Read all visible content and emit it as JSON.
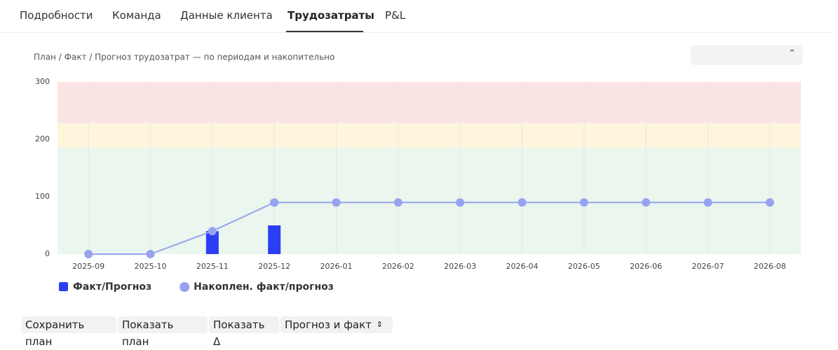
{
  "tabs": [
    "Подробности",
    "Команда",
    "Данные клиента",
    "Трудозатраты",
    "P&L"
  ],
  "active_tab": 3,
  "chart_data": {
    "type": "bar_line",
    "subtitle": "План / Факт / Прогноз трудозатрат — по периодам и накопительно",
    "categories": [
      "2025-09",
      "2025-10",
      "2025-11",
      "2025-12",
      "2026-01",
      "2026-02",
      "2026-03",
      "2026-04",
      "2026-05",
      "2026-06",
      "2026-07",
      "2026-08"
    ],
    "series": [
      {
        "name": "Факт/Прогноз",
        "type": "bar",
        "color": "#2a3ff5",
        "values": [
          null,
          null,
          40,
          50,
          null,
          null,
          null,
          null,
          null,
          null,
          null,
          null
        ]
      },
      {
        "name": "Накоплен. факт/прогноз",
        "type": "line",
        "color": "#97a3ef",
        "values": [
          0,
          0,
          40,
          90,
          90,
          90,
          90,
          90,
          90,
          90,
          90,
          90
        ]
      }
    ],
    "ylim": [
      0,
      300
    ],
    "yticks": [
      0,
      100,
      200,
      300
    ],
    "bands": [
      {
        "from": 0,
        "to": 185,
        "color": "#eaf6ee"
      },
      {
        "from": 185,
        "to": 228,
        "color": "#fdf6dc"
      },
      {
        "from": 228,
        "to": 300,
        "color": "#fbe4e4"
      }
    ],
    "grid": true
  },
  "buttons": [
    "Сохранить план",
    "Показать план",
    "Показать Δ",
    "Прогноз и факт"
  ]
}
